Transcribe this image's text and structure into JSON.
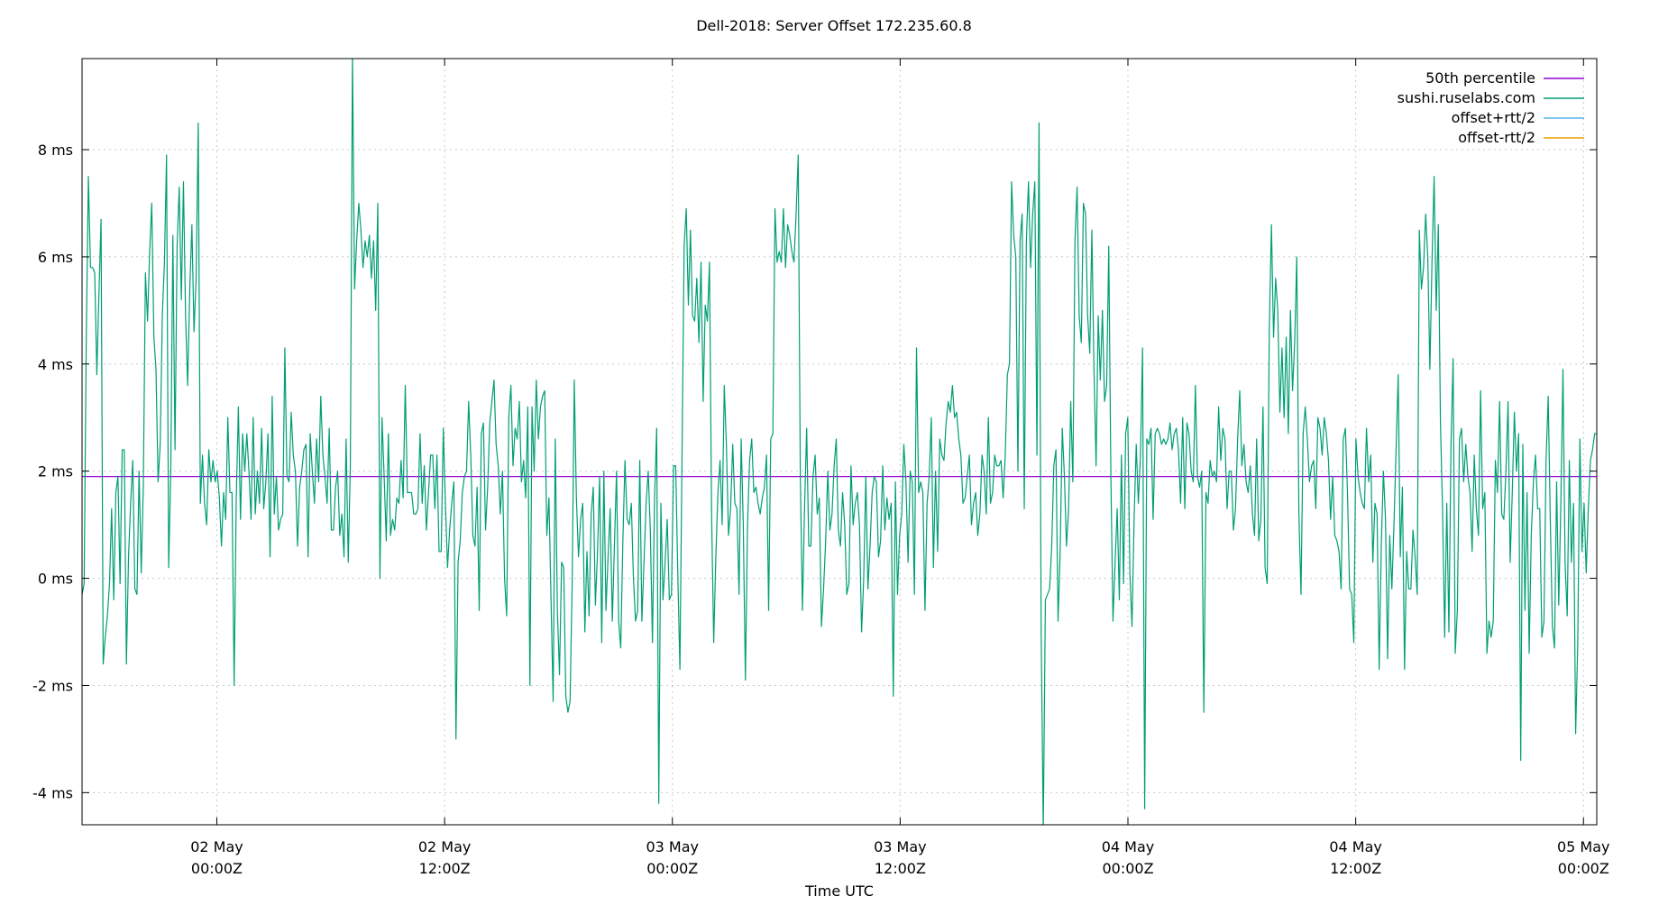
{
  "chart_data": {
    "type": "line",
    "title": "Dell-2018: Server Offset 172.235.60.8",
    "xlabel": "Time UTC",
    "ylabel": "",
    "x_unit": "hours since 2 May 00:00Z",
    "xlim": [
      -7.1,
      72.7
    ],
    "ylim": [
      -4.6,
      9.7
    ],
    "y_ticks": [
      {
        "value": -4,
        "label": "-4 ms"
      },
      {
        "value": -2,
        "label": "-2 ms"
      },
      {
        "value": 0,
        "label": "0 ms"
      },
      {
        "value": 2,
        "label": "2 ms"
      },
      {
        "value": 4,
        "label": "4 ms"
      },
      {
        "value": 6,
        "label": "6 ms"
      },
      {
        "value": 8,
        "label": "8 ms"
      }
    ],
    "x_ticks": [
      {
        "value": 0,
        "line1": "02 May",
        "line2": "00:00Z"
      },
      {
        "value": 12,
        "line1": "02 May",
        "line2": "12:00Z"
      },
      {
        "value": 24,
        "line1": "03 May",
        "line2": "00:00Z"
      },
      {
        "value": 36,
        "line1": "03 May",
        "line2": "12:00Z"
      },
      {
        "value": 48,
        "line1": "04 May",
        "line2": "00:00Z"
      },
      {
        "value": 60,
        "line1": "04 May",
        "line2": "12:00Z"
      },
      {
        "value": 72,
        "line1": "05 May",
        "line2": "00:00Z"
      }
    ],
    "grid": true,
    "legend_position": "top-right",
    "series": [
      {
        "name": "50th percentile",
        "color": "#9400d3",
        "constant": 1.9
      },
      {
        "name": "sushi.ruselabs.com",
        "color": "#009e73",
        "values": [
          -0.3,
          -0.1,
          4.5,
          7.5,
          5.8,
          5.8,
          5.7,
          3.8,
          5.3,
          6.7,
          -1.6,
          -1.1,
          -0.7,
          -0.1,
          1.3,
          -0.4,
          1.6,
          1.9,
          -0.1,
          2.4,
          2.4,
          -1.6,
          0.4,
          1.4,
          2.2,
          -0.2,
          -0.3,
          2.0,
          0.1,
          1.7,
          5.7,
          4.8,
          6.1,
          7.0,
          4.5,
          3.9,
          1.8,
          2.5,
          4.9,
          5.9,
          7.9,
          0.2,
          2.0,
          6.4,
          2.4,
          6.2,
          7.3,
          5.2,
          7.4,
          4.9,
          3.6,
          5.4,
          6.6,
          4.6,
          5.6,
          8.5,
          1.4,
          2.3,
          1.4,
          1.0,
          2.4,
          1.8,
          2.2,
          1.8,
          2.0,
          1.5,
          0.6,
          1.6,
          1.1,
          3.0,
          1.6,
          1.6,
          -2.0,
          1.5,
          3.2,
          1.1,
          2.7,
          2.0,
          2.7,
          2.0,
          1.1,
          3.0,
          1.2,
          2.0,
          1.4,
          2.8,
          1.3,
          1.8,
          2.7,
          0.4,
          3.4,
          1.2,
          1.9,
          0.9,
          1.1,
          1.2,
          4.3,
          1.9,
          1.8,
          3.1,
          2.3,
          2.0,
          0.6,
          1.7,
          2.0,
          2.4,
          2.5,
          0.4,
          2.7,
          2.0,
          1.4,
          2.6,
          1.8,
          3.4,
          2.3,
          1.9,
          1.4,
          2.8,
          0.9,
          0.9,
          1.7,
          2.0,
          0.8,
          1.2,
          0.4,
          2.6,
          0.3,
          2.1,
          9.8,
          5.4,
          6.3,
          7.0,
          6.5,
          5.8,
          6.3,
          6.0,
          6.4,
          5.6,
          6.3,
          5.0,
          7.0,
          0.0,
          3.0,
          1.9,
          0.7,
          2.7,
          0.8,
          1.1,
          0.9,
          1.5,
          1.4,
          2.2,
          1.5,
          3.6,
          1.6,
          1.6,
          1.6,
          1.2,
          1.2,
          1.3,
          2.7,
          1.4,
          2.1,
          0.9,
          1.6,
          2.3,
          2.3,
          1.3,
          2.3,
          0.5,
          0.5,
          2.8,
          1.4,
          0.2,
          0.9,
          1.4,
          1.8,
          -3.0,
          0.3,
          0.7,
          1.6,
          1.9,
          2.0,
          3.3,
          2.3,
          0.8,
          0.6,
          1.7,
          -0.6,
          2.7,
          2.9,
          0.9,
          1.7,
          2.9,
          3.3,
          3.7,
          2.5,
          2.1,
          1.2,
          2.0,
          0.0,
          -0.7,
          3.0,
          3.6,
          2.1,
          2.8,
          2.6,
          3.3,
          1.8,
          2.2,
          1.5,
          3.2,
          -2.0,
          3.2,
          2.0,
          3.7,
          2.6,
          3.2,
          3.4,
          3.5,
          0.8,
          1.5,
          -0.4,
          -2.3,
          2.6,
          -0.6,
          -1.8,
          0.3,
          0.2,
          -2.2,
          -2.5,
          -2.3,
          -0.1,
          3.7,
          1.5,
          0.4,
          1.1,
          1.4,
          -1.0,
          0.5,
          -0.7,
          1.2,
          1.7,
          -0.5,
          0.5,
          1.9,
          -1.2,
          2.0,
          -0.6,
          0.4,
          1.3,
          -0.8,
          0.6,
          2.0,
          -0.8,
          -1.3,
          0.7,
          2.2,
          1.1,
          1.0,
          1.4,
          0.0,
          -0.8,
          -0.6,
          2.2,
          -0.8,
          0.3,
          1.4,
          2.0,
          0.9,
          -1.2,
          1.5,
          2.8,
          -4.2,
          1.4,
          -0.4,
          0.3,
          1.1,
          -0.4,
          -0.3,
          2.1,
          2.1,
          0.1,
          -1.7,
          2.3,
          6.2,
          6.9,
          5.1,
          6.5,
          4.9,
          4.8,
          5.6,
          4.4,
          5.9,
          3.3,
          5.1,
          4.8,
          5.9,
          1.2,
          -1.2,
          0.4,
          1.6,
          2.2,
          1.0,
          3.6,
          2.5,
          0.8,
          1.3,
          2.5,
          1.4,
          1.3,
          -0.3,
          2.6,
          1.0,
          -1.9,
          1.0,
          2.2,
          2.6,
          1.6,
          1.7,
          1.4,
          1.2,
          1.5,
          1.7,
          2.3,
          -0.6,
          2.6,
          2.7,
          6.9,
          5.9,
          6.1,
          5.9,
          6.9,
          5.8,
          6.6,
          6.4,
          6.1,
          5.9,
          6.8,
          7.9,
          1.9,
          -0.6,
          1.3,
          2.8,
          0.6,
          0.6,
          1.9,
          2.3,
          1.2,
          1.5,
          -0.9,
          -0.2,
          0.7,
          2.0,
          0.9,
          1.2,
          2.1,
          2.6,
          0.9,
          0.6,
          1.6,
          1.0,
          -0.3,
          -0.1,
          2.1,
          1.0,
          1.4,
          1.6,
          1.0,
          -1.0,
          0.0,
          1.9,
          -0.2,
          0.6,
          1.6,
          1.9,
          1.8,
          0.4,
          0.7,
          2.1,
          0.9,
          1.5,
          1.1,
          1.4,
          -2.2,
          1.8,
          -0.3,
          0.8,
          1.2,
          2.5,
          1.8,
          0.3,
          2.0,
          1.8,
          -0.3,
          4.3,
          1.6,
          1.8,
          1.6,
          -0.6,
          1.4,
          1.9,
          3.0,
          0.2,
          2.0,
          0.5,
          2.6,
          2.3,
          2.2,
          2.9,
          3.3,
          3.1,
          3.6,
          3.0,
          3.1,
          2.6,
          2.3,
          1.4,
          1.5,
          1.9,
          2.3,
          1.0,
          1.4,
          1.6,
          0.8,
          1.2,
          2.3,
          2.0,
          1.2,
          3.0,
          1.4,
          1.6,
          2.3,
          2.1,
          2.1,
          2.2,
          1.5,
          2.3,
          3.8,
          4.0,
          7.4,
          6.4,
          6.0,
          2.0,
          6.3,
          6.8,
          1.3,
          6.3,
          7.4,
          5.8,
          6.8,
          7.4,
          2.3,
          8.5,
          -1.0,
          -4.7,
          -0.4,
          -0.3,
          -0.2,
          0.6,
          2.1,
          2.4,
          -0.8,
          0.5,
          2.8,
          1.9,
          0.6,
          1.3,
          3.3,
          1.8,
          6.3,
          7.3,
          4.9,
          4.4,
          7.0,
          6.8,
          4.9,
          4.2,
          6.5,
          3.9,
          2.1,
          4.9,
          3.7,
          5.0,
          3.3,
          3.6,
          6.2,
          1.9,
          -0.8,
          0.3,
          1.3,
          -0.4,
          2.3,
          -0.1,
          2.7,
          3.0,
          0.1,
          -0.9,
          1.1,
          2.5,
          1.4,
          2.3,
          4.3,
          -4.3,
          2.6,
          2.5,
          2.8,
          1.1,
          2.7,
          2.8,
          2.7,
          2.5,
          2.6,
          2.5,
          2.6,
          2.9,
          2.4,
          2.7,
          2.8,
          2.4,
          1.4,
          3.0,
          1.3,
          2.9,
          2.7,
          2.0,
          1.8,
          3.6,
          1.9,
          1.7,
          2.0,
          -2.5,
          1.6,
          1.4,
          2.2,
          1.9,
          2.0,
          1.8,
          3.2,
          2.2,
          2.8,
          2.6,
          1.3,
          2.0,
          2.0,
          0.9,
          1.3,
          2.6,
          3.5,
          2.1,
          2.5,
          1.8,
          1.6,
          2.1,
          1.2,
          0.8,
          2.6,
          0.7,
          1.1,
          3.2,
          0.2,
          -0.1,
          4.7,
          6.6,
          4.5,
          5.6,
          5.0,
          3.1,
          4.3,
          3.0,
          4.5,
          2.7,
          5.0,
          3.5,
          4.4,
          6.0,
          1.2,
          -0.3,
          2.7,
          3.2,
          2.6,
          1.8,
          2.1,
          2.2,
          1.3,
          3.0,
          2.8,
          2.3,
          3.0,
          2.7,
          2.2,
          1.1,
          1.9,
          0.8,
          0.7,
          0.5,
          -0.2,
          2.6,
          2.8,
          1.6,
          -0.2,
          -0.3,
          -1.2,
          2.6,
          1.9,
          1.6,
          1.4,
          1.3,
          2.8,
          1.8,
          2.3,
          0.3,
          1.4,
          1.2,
          -1.7,
          0.6,
          2.0,
          1.1,
          -1.5,
          0.8,
          -0.2,
          1.0,
          2.4,
          3.8,
          0.4,
          1.7,
          -1.7,
          0.5,
          -0.2,
          -0.2,
          0.9,
          0.4,
          -0.3,
          6.5,
          5.4,
          5.8,
          6.8,
          6.0,
          3.9,
          5.9,
          7.5,
          5.0,
          6.6,
          2.9,
          1.3,
          -1.1,
          1.4,
          -1.0,
          2.5,
          4.1,
          -1.4,
          -0.6,
          2.6,
          2.8,
          1.8,
          2.5,
          1.9,
          1.6,
          0.5,
          2.3,
          1.3,
          0.8,
          3.5,
          1.3,
          1.6,
          -1.4,
          -0.8,
          -1.1,
          -0.8,
          2.2,
          1.6,
          3.3,
          1.2,
          1.1,
          2.0,
          3.3,
          0.3,
          1.6,
          3.1,
          2.0,
          2.7,
          -3.4,
          2.5,
          -0.6,
          1.6,
          -1.4,
          0.8,
          1.8,
          2.3,
          1.3,
          1.3,
          -1.1,
          -0.8,
          2.2,
          3.4,
          1.1,
          -0.9,
          -1.3,
          1.8,
          -0.5,
          1.4,
          3.9,
          0.3,
          -0.7,
          2.2,
          0.3,
          1.4,
          -2.9,
          -1.2,
          2.6,
          0.5,
          1.4,
          0.1,
          1.3,
          2.2,
          2.4,
          2.7,
          2.7
        ]
      },
      {
        "name": "offset+rtt/2",
        "color": "#56b4e9",
        "values": []
      },
      {
        "name": "offset-rtt/2",
        "color": "#e69f00",
        "values": []
      }
    ]
  }
}
